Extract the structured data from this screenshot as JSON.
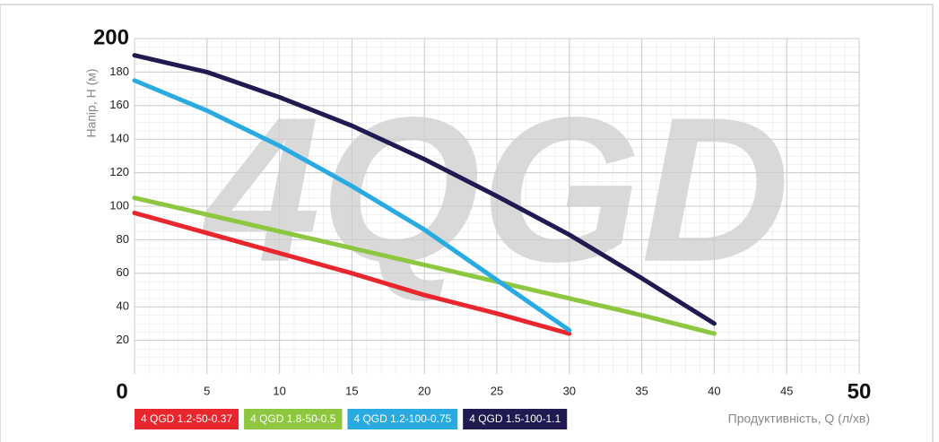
{
  "chart_data": {
    "type": "line",
    "watermark": "4QGD",
    "x_label": "Продуктивність, Q (л/хв)",
    "y_label": "Напір, H (м)",
    "x": [
      0,
      5,
      10,
      15,
      20,
      25,
      30,
      35,
      40
    ],
    "series": [
      {
        "name": "4 QGD 1.2-50-0.37",
        "color": "#e8262d",
        "values": [
          96,
          84,
          72,
          60,
          47,
          36,
          24,
          null,
          null
        ]
      },
      {
        "name": "4 QGD 1.8-50-0.5",
        "color": "#8dc63f",
        "values": [
          105,
          95,
          85,
          75,
          65,
          55,
          45,
          35,
          24
        ]
      },
      {
        "name": "4 QGD 1.2-100-0.75",
        "color": "#29abe2",
        "values": [
          175,
          157,
          136,
          112,
          86,
          56,
          26,
          null,
          null
        ]
      },
      {
        "name": "4 QGD 1.5-100-1.1",
        "color": "#1f1a4f",
        "values": [
          190,
          180,
          165,
          148,
          128,
          106,
          83,
          57,
          30
        ]
      }
    ],
    "xlim": [
      0,
      50
    ],
    "ylim": [
      0,
      200
    ],
    "xticks": [
      0,
      5,
      10,
      15,
      20,
      25,
      30,
      35,
      40,
      45,
      50
    ],
    "yticks": [
      20,
      40,
      60,
      80,
      100,
      120,
      140,
      160,
      180,
      200
    ],
    "grid": true
  }
}
